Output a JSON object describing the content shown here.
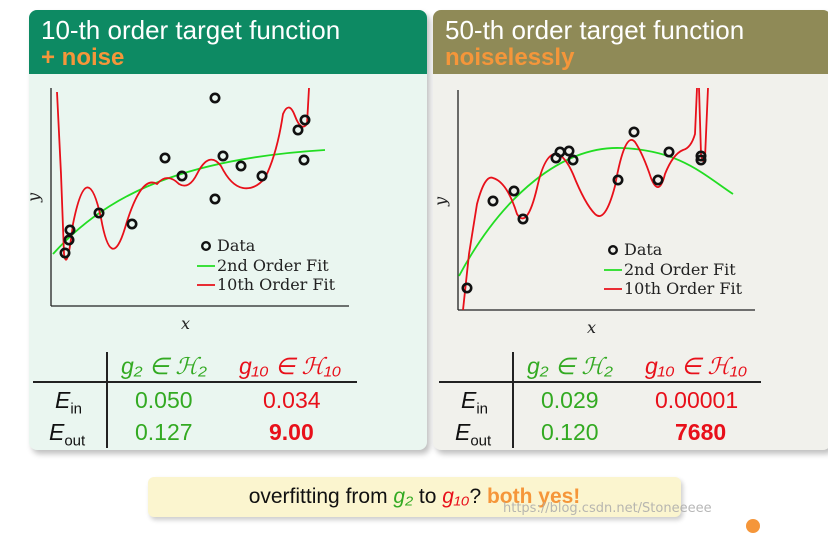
{
  "panels": [
    {
      "title": "10-th order target function",
      "subtitle": "+ noise",
      "legend": [
        "Data",
        "2nd Order Fit",
        "10th Order Fit"
      ],
      "xlabel": "x",
      "ylabel": "y",
      "table": {
        "col_headers": [
          "g₂ ∈ ℋ₂",
          "g₁₀ ∈ ℋ₁₀"
        ],
        "rows": [
          {
            "label": "E",
            "sub": "in",
            "g2": "0.050",
            "g10": "0.034"
          },
          {
            "label": "E",
            "sub": "out",
            "g2": "0.127",
            "g10": "9.00"
          }
        ]
      }
    },
    {
      "title": "50-th order target function",
      "subtitle": "noiselessly",
      "legend": [
        "Data",
        "2nd Order Fit",
        "10th Order Fit"
      ],
      "xlabel": "x",
      "ylabel": "y",
      "table": {
        "col_headers": [
          "g₂ ∈ ℋ₂",
          "g₁₀ ∈ ℋ₁₀"
        ],
        "rows": [
          {
            "label": "E",
            "sub": "in",
            "g2": "0.029",
            "g10": "0.00001"
          },
          {
            "label": "E",
            "sub": "out",
            "g2": "0.120",
            "g10": "7680"
          }
        ]
      }
    }
  ],
  "bottom": {
    "prefix": "overfitting from ",
    "g2": "g₂",
    "mid": " to ",
    "g10": "g₁₀",
    "question": "? ",
    "answer": "both yes!"
  },
  "watermark": "https://blog.csdn.net/Stoneeeee",
  "colors": {
    "left_header": "#0d8a63",
    "right_header": "#8f8a57",
    "accent_orange": "#f5963a",
    "green_fit": "#22dd22",
    "red_fit": "#e8101a"
  }
}
